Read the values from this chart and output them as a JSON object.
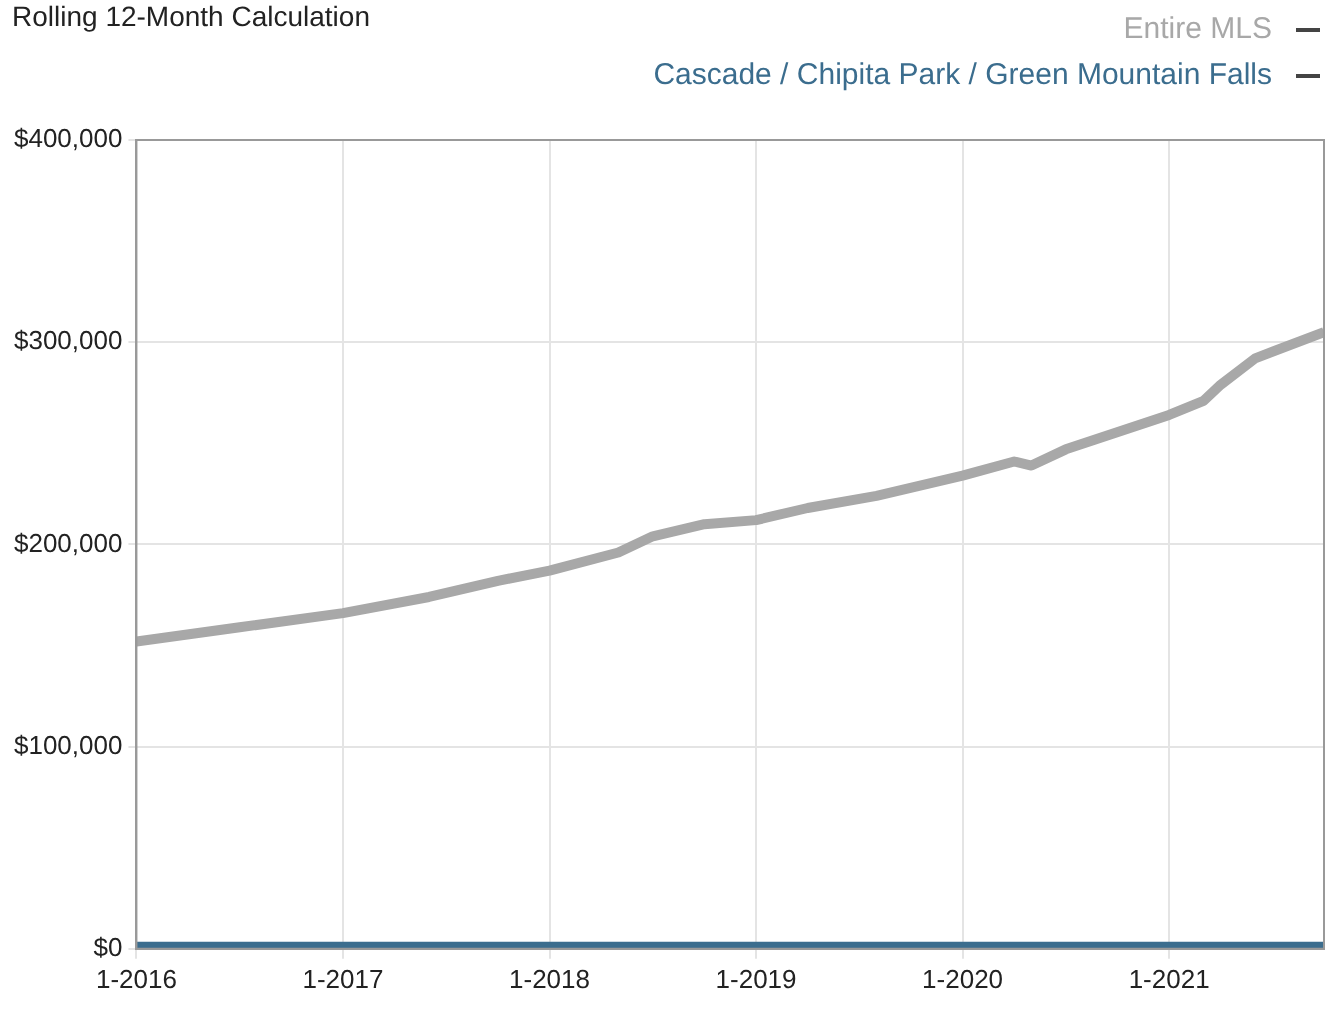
{
  "chart_data": {
    "type": "line",
    "title": "Rolling 12-Month Calculation",
    "series": [
      {
        "name": "Entire MLS",
        "color": "#a8a8a8",
        "x": [
          "2016-01",
          "2016-07",
          "2017-01",
          "2017-06",
          "2017-10",
          "2018-01",
          "2018-05",
          "2018-07",
          "2018-10",
          "2019-01",
          "2019-04",
          "2019-08",
          "2020-01",
          "2020-04",
          "2020-05",
          "2020-07",
          "2021-01",
          "2021-03",
          "2021-04",
          "2021-06",
          "2021-10"
        ],
        "values": [
          152000,
          159000,
          166000,
          174000,
          182000,
          187000,
          196000,
          204000,
          210000,
          212000,
          218000,
          224000,
          234000,
          241000,
          239000,
          247000,
          264000,
          271000,
          279000,
          292000,
          305000
        ]
      },
      {
        "name": "Cascade / Chipita Park / Green Mountain Falls",
        "color": "#3b6d8e",
        "x": [
          "2016-01",
          "2021-10"
        ],
        "values": [
          1000,
          1000
        ]
      }
    ],
    "xlim": [
      "2016-01",
      "2021-10"
    ],
    "xticks": [
      {
        "value": "2016-01",
        "label": "1-2016"
      },
      {
        "value": "2017-01",
        "label": "1-2017"
      },
      {
        "value": "2018-01",
        "label": "1-2018"
      },
      {
        "value": "2019-01",
        "label": "1-2019"
      },
      {
        "value": "2020-01",
        "label": "1-2020"
      },
      {
        "value": "2021-01",
        "label": "1-2021"
      }
    ],
    "ylim": [
      0,
      400000
    ],
    "yticks": [
      {
        "value": 0,
        "label": "$0"
      },
      {
        "value": 100000,
        "label": "$100,000"
      },
      {
        "value": 200000,
        "label": "$200,000"
      },
      {
        "value": 300000,
        "label": "$300,000"
      },
      {
        "value": 400000,
        "label": "$400,000"
      }
    ],
    "grid": true,
    "legend": "top right",
    "marker": "none",
    "line_style": "solid"
  }
}
